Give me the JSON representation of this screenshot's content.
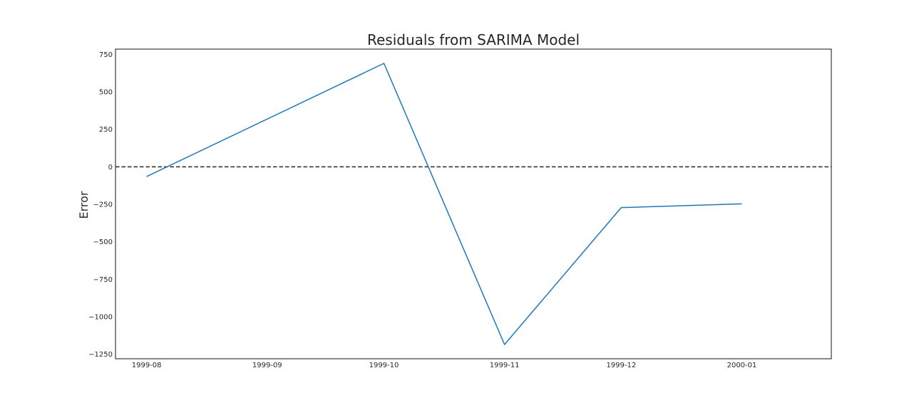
{
  "chart_data": {
    "type": "line",
    "title": "Residuals from SARIMA Model",
    "xlabel": "",
    "ylabel": "Error",
    "x": [
      "1999-08-01",
      "1999-10-01",
      "1999-11-01",
      "1999-12-01",
      "2000-01-01"
    ],
    "series": [
      {
        "values": [
          -65,
          690,
          -1185,
          -272,
          -247
        ],
        "color": "#1f77b4"
      }
    ],
    "reference_line": {
      "y": 0,
      "style": "dashed",
      "color": "#262626"
    },
    "xlim": [
      "1999-07-24",
      "2000-01-24"
    ],
    "ylim": [
      -1280,
      785
    ],
    "x_ticks": [
      "1999-08",
      "1999-09",
      "1999-10",
      "1999-11",
      "1999-12",
      "2000-01"
    ],
    "x_tick_dates": [
      "1999-08-01",
      "1999-09-01",
      "1999-10-01",
      "1999-11-01",
      "1999-12-01",
      "2000-01-01"
    ],
    "y_ticks": [
      750,
      500,
      250,
      0,
      -250,
      -500,
      -750,
      -1000,
      -1250
    ],
    "y_tick_labels": [
      "750",
      "500",
      "250",
      "0",
      "−250",
      "−500",
      "−750",
      "−1000",
      "−1250"
    ],
    "grid": false,
    "legend": "none"
  }
}
